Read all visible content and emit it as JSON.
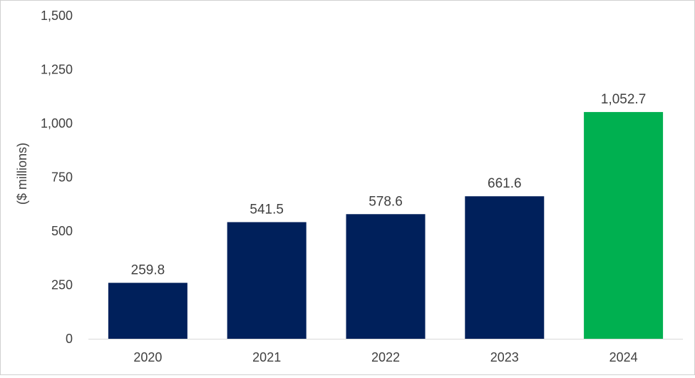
{
  "chart_data": {
    "type": "bar",
    "categories": [
      "2020",
      "2021",
      "2022",
      "2023",
      "2024"
    ],
    "values": [
      259.8,
      541.5,
      578.6,
      661.6,
      1052.7
    ],
    "data_labels": [
      "259.8",
      "541.5",
      "578.6",
      "661.6",
      "1,052.7"
    ],
    "title": "",
    "xlabel": "",
    "ylabel": "($ millions)",
    "ylim": [
      0,
      1500
    ],
    "yticks": [
      0,
      250,
      500,
      750,
      1000,
      1250,
      1500
    ],
    "ytick_labels": [
      "0",
      "250",
      "500",
      "750",
      "1,000",
      "1,250",
      "1,500"
    ],
    "grid": false,
    "legend": "none",
    "colors": [
      "#00205b",
      "#00205b",
      "#00205b",
      "#00205b",
      "#00b050"
    ]
  }
}
